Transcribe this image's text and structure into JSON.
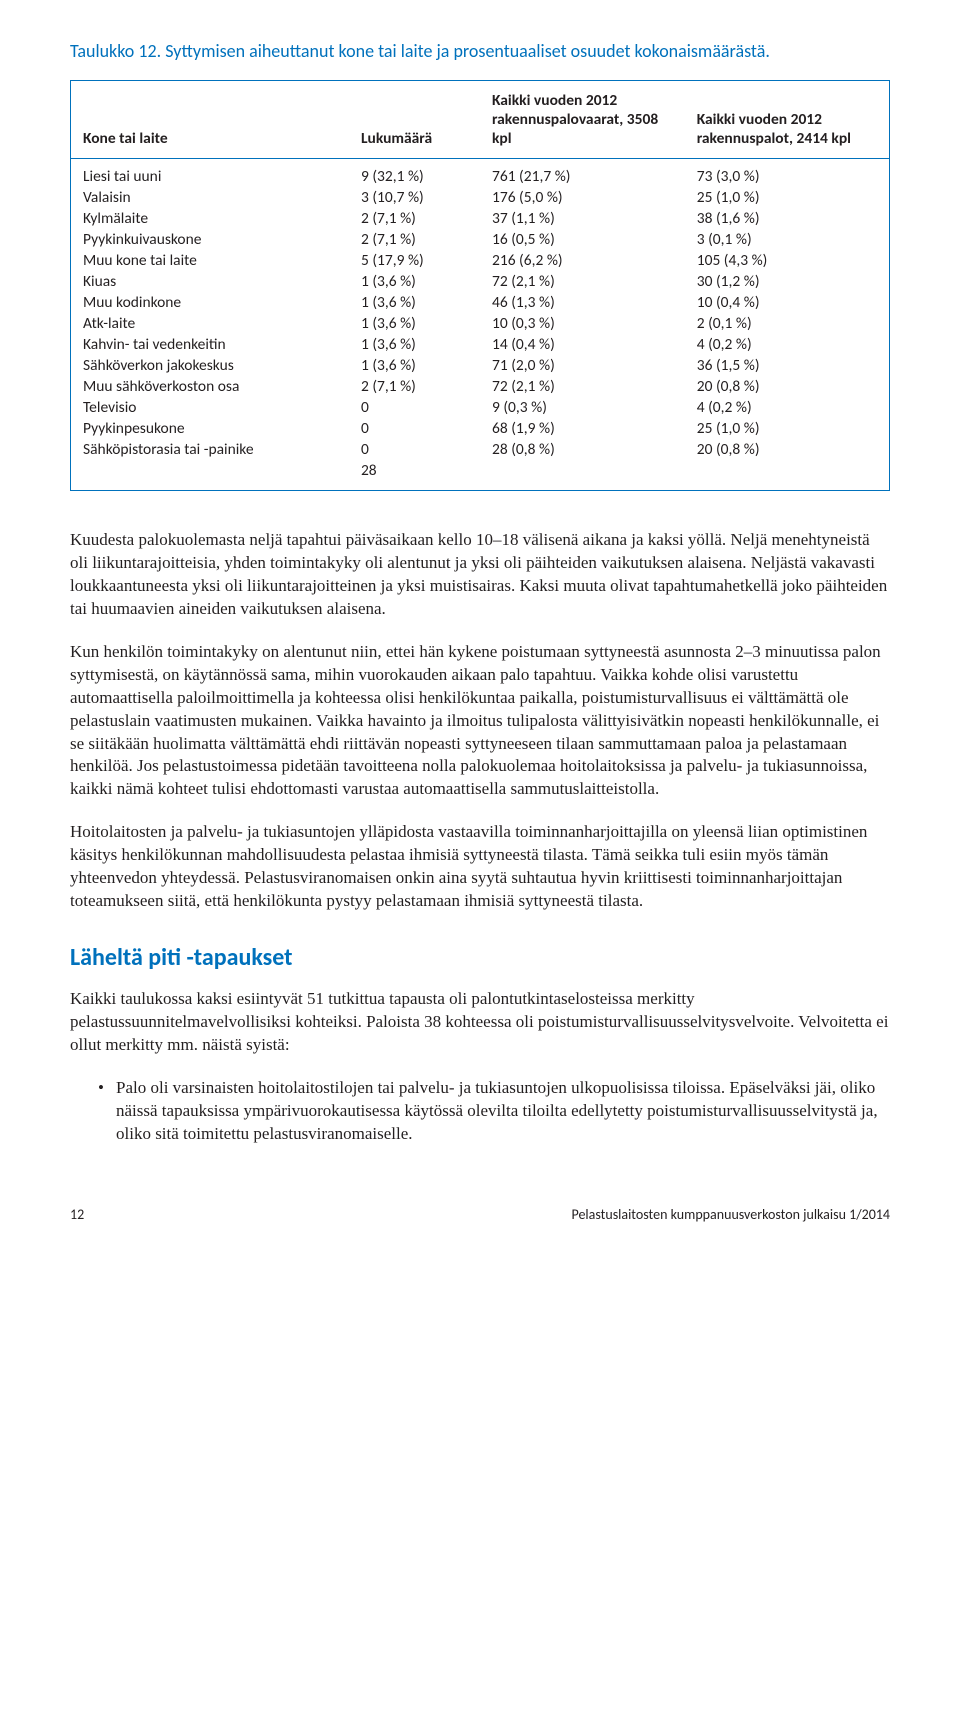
{
  "table": {
    "title": "Taulukko 12. Syttymisen aiheuttanut kone tai laite ja prosentuaaliset osuudet kokonaismäärästä.",
    "title_color": "#0071bc",
    "border_color": "#0071bc",
    "columns": [
      "Kone tai laite",
      "Lukumäärä",
      "Kaikki vuoden 2012 rakennuspalovaarat, 3508 kpl",
      "Kaikki vuoden 2012 rakennuspalot, 2414 kpl"
    ],
    "rows": [
      [
        "Liesi tai uuni",
        "9 (32,1 %)",
        "761 (21,7 %)",
        "73 (3,0 %)"
      ],
      [
        "Valaisin",
        "3 (10,7 %)",
        "176 (5,0 %)",
        "25 (1,0 %)"
      ],
      [
        "Kylmälaite",
        "2 (7,1 %)",
        "37 (1,1 %)",
        "38 (1,6 %)"
      ],
      [
        "Pyykinkuivauskone",
        "2 (7,1 %)",
        "16 (0,5 %)",
        "3 (0,1 %)"
      ],
      [
        "Muu kone tai laite",
        "5 (17,9 %)",
        "216 (6,2 %)",
        "105 (4,3 %)"
      ],
      [
        "Kiuas",
        "1 (3,6 %)",
        "72 (2,1 %)",
        "30 (1,2 %)"
      ],
      [
        "Muu kodinkone",
        "1 (3,6 %)",
        "46 (1,3 %)",
        "10 (0,4 %)"
      ],
      [
        "Atk-laite",
        "1 (3,6 %)",
        "10 (0,3 %)",
        "2 (0,1 %)"
      ],
      [
        "Kahvin- tai vedenkeitin",
        "1 (3,6 %)",
        "14 (0,4 %)",
        "4 (0,2 %)"
      ],
      [
        "Sähköverkon jakokeskus",
        "1 (3,6 %)",
        "71 (2,0 %)",
        "36 (1,5 %)"
      ],
      [
        "Muu sähköverkoston osa",
        "2 (7,1 %)",
        "72 (2,1 %)",
        "20 (0,8 %)"
      ],
      [
        "Televisio",
        "0",
        "9 (0,3 %)",
        "4 (0,2 %)"
      ],
      [
        "Pyykinpesukone",
        "0",
        "68 (1,9 %)",
        "25 (1,0 %)"
      ],
      [
        "Sähköpistorasia tai -painike",
        "0",
        "28 (0,8 %)",
        "20 (0,8 %)"
      ],
      [
        "",
        "28",
        "",
        ""
      ]
    ]
  },
  "paragraphs": {
    "p1": "Kuudesta palokuolemasta neljä tapahtui päiväsaikaan kello 10–18 välisenä aikana ja kaksi yöllä. Neljä menehtyneistä oli liikuntarajoitteisia, yhden toimintakyky oli alentunut ja yksi oli päihteiden vaikutuksen alaisena. Neljästä vakavasti loukkaantuneesta yksi oli liikuntarajoitteinen ja yksi muistisairas. Kaksi muuta olivat tapahtumahetkellä joko päihteiden tai huumaavien aineiden vaikutuksen alaisena.",
    "p2": "Kun henkilön toimintakyky on alentunut niin, ettei hän kykene poistumaan syttyneestä asunnosta 2–3 minuutissa palon syttymisestä, on käytännössä sama, mihin vuorokauden aikaan palo tapahtuu. Vaikka kohde olisi varustettu automaattisella paloilmoittimella ja kohteessa olisi henkilökuntaa paikalla, poistumisturvallisuus ei välttämättä ole pelastuslain vaatimusten mukainen. Vaikka havainto ja ilmoitus tulipalosta välittyisivätkin nopeasti henkilökunnalle, ei se siitäkään huolimatta välttämättä ehdi riittävän nopeasti syttyneeseen tilaan sammuttamaan paloa ja pelastamaan henkilöä. Jos pelastustoimessa pidetään tavoitteena nolla palokuolemaa hoitolaitoksissa ja palvelu- ja tukiasunnoissa, kaikki nämä kohteet tulisi ehdottomasti varustaa automaattisella sammutuslaitteistolla.",
    "p3": "Hoitolaitosten ja palvelu- ja tukiasuntojen ylläpidosta vastaavilla toiminnanharjoittajilla on yleensä liian optimistinen käsitys henkilökunnan mahdollisuudesta pelastaa ihmisiä syttyneestä tilasta. Tämä seikka tuli esiin myös tämän yhteenvedon yhteydessä. Pelastusviranomaisen onkin aina syytä suhtautua hyvin kriittisesti toiminnanharjoittajan toteamukseen siitä, että henkilökunta pystyy pelastamaan ihmisiä syttyneestä tilasta.",
    "section_title": "Läheltä piti -tapaukset",
    "p4": "Kaikki taulukossa kaksi esiintyvät 51 tutkittua tapausta oli palontutkintaselosteissa merkitty pelastussuunnitelmavelvollisiksi kohteiksi. Paloista 38 kohteessa oli poistumisturvallisuusselvitysvelvoite. Velvoitetta ei ollut merkitty mm. näistä syistä:",
    "bullet1": "Palo oli varsinaisten hoitolaitostilojen tai palvelu- ja tukiasuntojen ulkopuolisissa tiloissa. Epäselväksi jäi, oliko näissä tapauksissa ympärivuorokautisessa käytössä olevilta tiloilta edellytetty poistumisturvallisuusselvitystä ja, oliko sitä toimitettu pelastusviranomaiselle."
  },
  "footer": {
    "page": "12",
    "pub": "Pelastuslaitosten kumppanuusverkoston julkaisu 1/2014"
  }
}
